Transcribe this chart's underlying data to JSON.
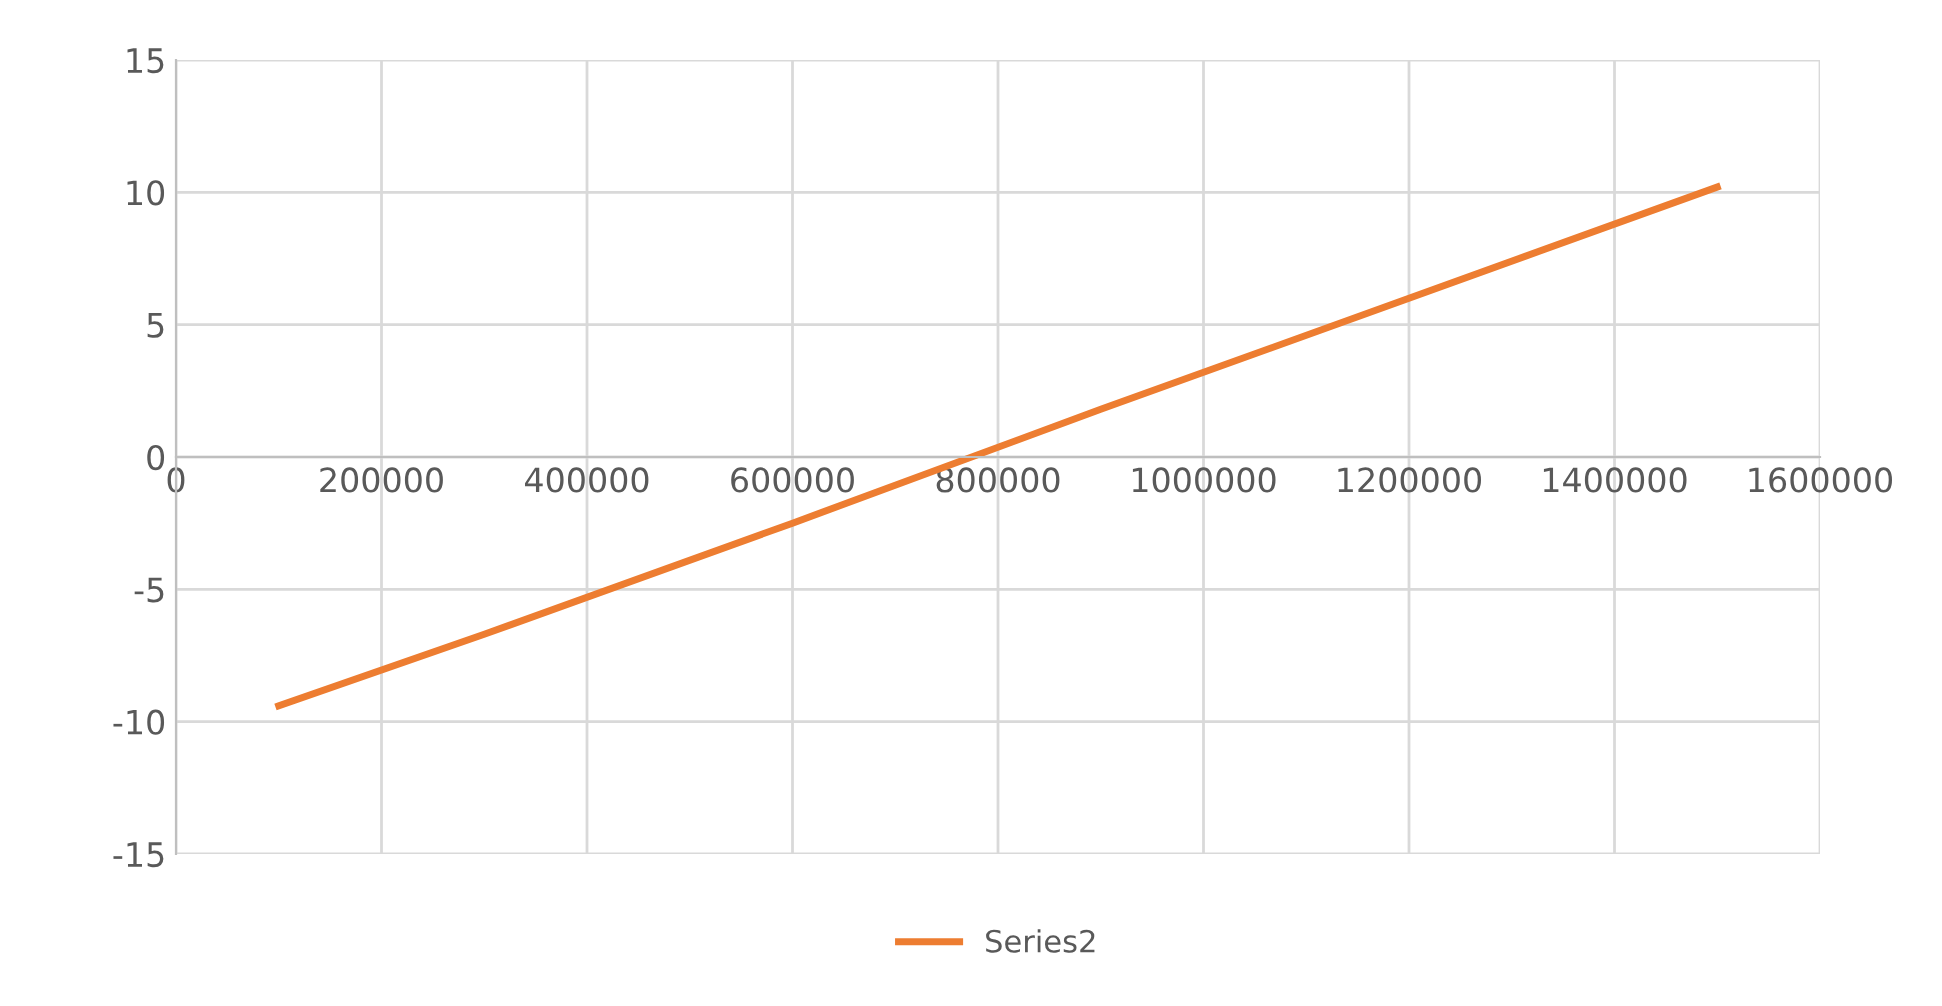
{
  "chart_data": {
    "type": "line",
    "x": [
      100000,
      300000,
      600000,
      900000,
      1200000,
      1500000
    ],
    "series": [
      {
        "name": "Series2",
        "color": "#ed7d31",
        "values": [
          -9.4,
          -6.7,
          -2.5,
          1.8,
          6.0,
          10.2
        ]
      }
    ],
    "xlim": [
      0,
      1600000
    ],
    "xticks": [
      0,
      200000,
      400000,
      600000,
      800000,
      1000000,
      1200000,
      1400000,
      1600000
    ],
    "ylim": [
      -15,
      15
    ],
    "yticks": [
      -15,
      -10,
      -5,
      0,
      5,
      10,
      15
    ],
    "grid": true,
    "legend": "bottom",
    "marker": "none",
    "line_style": "solid"
  }
}
